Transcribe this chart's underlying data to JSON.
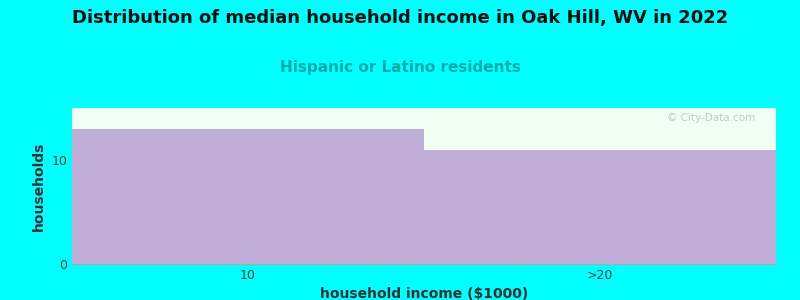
{
  "title": "Distribution of median household income in Oak Hill, WV in 2022",
  "subtitle": "Hispanic or Latino residents",
  "xlabel": "household income ($1000)",
  "ylabel": "households",
  "categories": [
    "10",
    ">20"
  ],
  "values": [
    13,
    11
  ],
  "bar_color": "#c0aed8",
  "background_color": "#00ffff",
  "plot_bg_color": "#f0fff4",
  "title_fontsize": 13,
  "subtitle_fontsize": 11,
  "subtitle_color": "#00aaaa",
  "axis_label_fontsize": 10,
  "tick_fontsize": 9,
  "ylim": [
    0,
    15
  ],
  "yticks": [
    0,
    10
  ],
  "watermark": "© City-Data.com"
}
